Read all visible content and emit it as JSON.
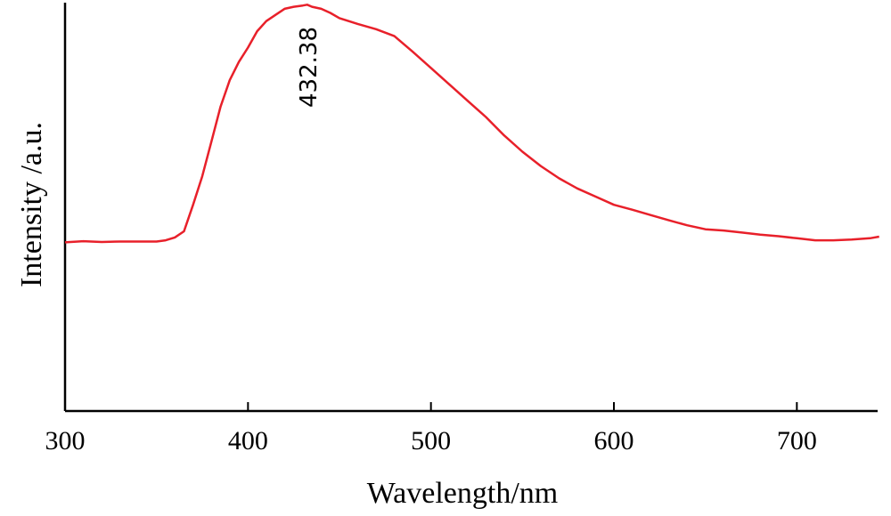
{
  "chart_data": {
    "type": "line",
    "xlabel": "Wavelength/nm",
    "ylabel": "Intensity /a.u.",
    "xlim": [
      300,
      750
    ],
    "ylim": [
      0,
      1
    ],
    "xticks": [
      300,
      400,
      500,
      600,
      700
    ],
    "yticks_shown": false,
    "grid": false,
    "line_color": "#e8202a",
    "annotations": [
      {
        "text": "432.38",
        "x": 432.38,
        "rotation": "vertical"
      }
    ],
    "series": [
      {
        "x": [
          300,
          310,
          320,
          330,
          340,
          350,
          355,
          360,
          365,
          370,
          375,
          380,
          385,
          390,
          395,
          400,
          405,
          410,
          415,
          420,
          425,
          430,
          432.38,
          435,
          440,
          445,
          450,
          455,
          460,
          470,
          480,
          490,
          500,
          510,
          520,
          530,
          540,
          550,
          560,
          570,
          580,
          590,
          600,
          610,
          620,
          630,
          640,
          650,
          660,
          670,
          680,
          690,
          700,
          710,
          720,
          730,
          740,
          745
        ],
        "values": [
          0.413,
          0.416,
          0.414,
          0.415,
          0.415,
          0.415,
          0.418,
          0.425,
          0.44,
          0.505,
          0.575,
          0.66,
          0.745,
          0.81,
          0.855,
          0.89,
          0.93,
          0.955,
          0.97,
          0.985,
          0.99,
          0.993,
          0.995,
          0.99,
          0.985,
          0.975,
          0.962,
          0.955,
          0.948,
          0.935,
          0.918,
          0.88,
          0.84,
          0.8,
          0.76,
          0.72,
          0.675,
          0.635,
          0.6,
          0.57,
          0.545,
          0.525,
          0.505,
          0.493,
          0.48,
          0.467,
          0.455,
          0.445,
          0.442,
          0.437,
          0.432,
          0.428,
          0.423,
          0.418,
          0.418,
          0.42,
          0.423,
          0.427
        ]
      }
    ]
  }
}
